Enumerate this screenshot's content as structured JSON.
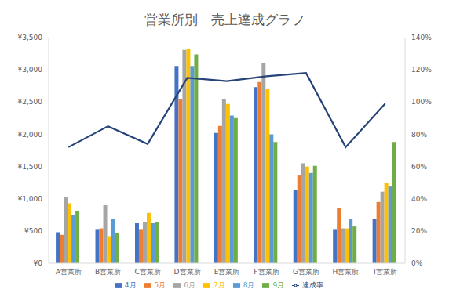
{
  "chart_data": {
    "type": "bar",
    "title": "営業所別　売上達成グラフ",
    "categories": [
      "A営業所",
      "B営業所",
      "C営業所",
      "D営業所",
      "E営業所",
      "F営業所",
      "G営業所",
      "H営業所",
      "I営業所"
    ],
    "series": [
      {
        "name": "4月",
        "color": "#4472c4",
        "values": [
          480,
          530,
          620,
          3060,
          2020,
          2730,
          1130,
          530,
          690
        ]
      },
      {
        "name": "5月",
        "color": "#ed7d31",
        "values": [
          440,
          540,
          530,
          2540,
          2130,
          2810,
          1360,
          860,
          950
        ]
      },
      {
        "name": "6月",
        "color": "#a5a5a5",
        "values": [
          1020,
          900,
          640,
          3310,
          2550,
          3100,
          1550,
          540,
          1110
        ]
      },
      {
        "name": "7月",
        "color": "#ffc000",
        "values": [
          930,
          420,
          780,
          3330,
          2470,
          2700,
          1500,
          540,
          1240
        ]
      },
      {
        "name": "8月",
        "color": "#5b9bd5",
        "values": [
          750,
          690,
          620,
          3060,
          2290,
          2000,
          1400,
          680,
          1190
        ]
      },
      {
        "name": "9月",
        "color": "#70ad47",
        "values": [
          810,
          470,
          640,
          3240,
          2250,
          1880,
          1510,
          570,
          1880
        ]
      },
      {
        "name": "達成率",
        "color": "#264478",
        "type": "line",
        "axis": "y2",
        "marker": "none",
        "values": [
          72,
          85,
          74,
          115,
          113,
          116,
          118,
          72,
          99
        ]
      }
    ],
    "ylim": [
      0,
      3500
    ],
    "yticks": [
      {
        "value": 0,
        "label": "¥0"
      },
      {
        "value": 500,
        "label": "¥500"
      },
      {
        "value": 1000,
        "label": "¥1,000"
      },
      {
        "value": 1500,
        "label": "¥1,500"
      },
      {
        "value": 2000,
        "label": "¥2,000"
      },
      {
        "value": 2500,
        "label": "¥2,500"
      },
      {
        "value": 3000,
        "label": "¥3,000"
      },
      {
        "value": 3500,
        "label": "¥3,500"
      }
    ],
    "y2lim": [
      0,
      140
    ],
    "y2ticks": [
      {
        "value": 0,
        "label": "0%"
      },
      {
        "value": 20,
        "label": "20%"
      },
      {
        "value": 40,
        "label": "40%"
      },
      {
        "value": 60,
        "label": "60%"
      },
      {
        "value": 80,
        "label": "80%"
      },
      {
        "value": 100,
        "label": "100%"
      },
      {
        "value": 120,
        "label": "120%"
      },
      {
        "value": 140,
        "label": "140%"
      }
    ],
    "grid": false,
    "legend": "bottom"
  }
}
